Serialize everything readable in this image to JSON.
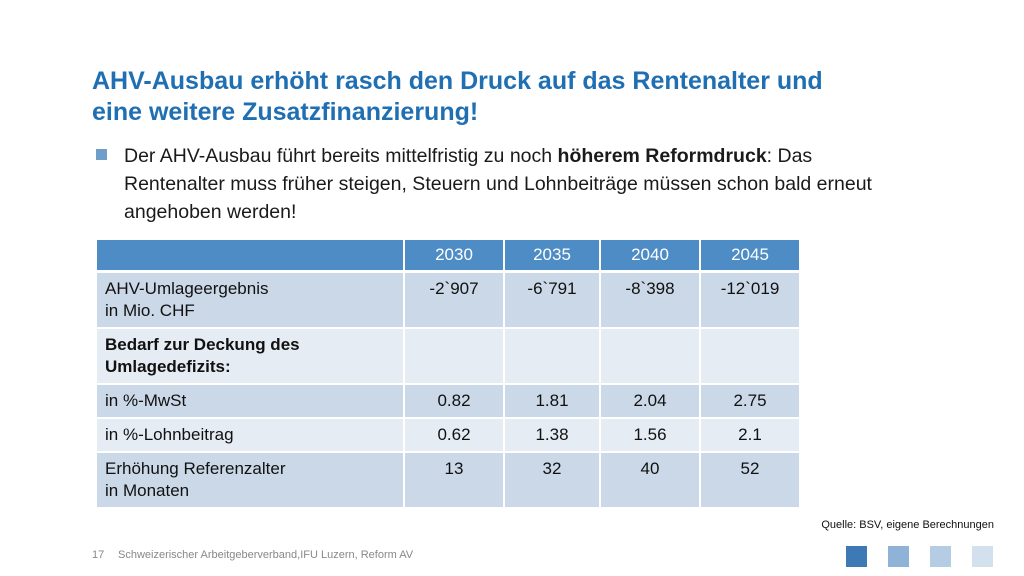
{
  "slide": {
    "title_line1": "AHV-Ausbau erhöht rasch den Druck auf das Rentenalter und",
    "title_line2": "eine weitere Zusatzfinanzierung!",
    "bullet": {
      "before": "Der AHV-Ausbau führt bereits mittelfristig zu noch ",
      "bold": "höherem Reformdruck",
      "after": ": Das Rentenalter muss früher steigen, Steuern und Lohnbeiträge müssen schon bald erneut angehoben werden!"
    }
  },
  "table": {
    "header": [
      "",
      "2030",
      "2035",
      "2040",
      "2045"
    ],
    "rows": [
      {
        "label1": "AHV-Umlageergebnis",
        "label2": "in Mio. CHF",
        "values": [
          "-2`907",
          "-6`791",
          "-8`398",
          "-12`019"
        ]
      },
      {
        "label1": "Bedarf zur Deckung des",
        "label2": "Umlagedefizits:",
        "values": [
          "",
          "",
          "",
          ""
        ]
      },
      {
        "label1": "in %-MwSt",
        "label2": "",
        "values": [
          "0.82",
          "1.81",
          "2.04",
          "2.75"
        ]
      },
      {
        "label1": "in %-Lohnbeitrag",
        "label2": "",
        "values": [
          "0.62",
          "1.38",
          "1.56",
          "2.1"
        ]
      },
      {
        "label1": "Erhöhung Referenzalter",
        "label2": "in Monaten",
        "values": [
          "13",
          "32",
          "40",
          "52"
        ]
      }
    ]
  },
  "source": "Quelle: BSV, eigene Berechnungen",
  "footer": {
    "page_number": "17",
    "text": "Schweizerischer Arbeitgeberverband,IFU Luzern, Reform AV"
  },
  "colors": {
    "title": "#1f6fb2",
    "table_header": "#4d8cc4",
    "row_dark": "#cbd8e7",
    "row_light": "#e6ecf3",
    "squares": [
      "#3d7ab5",
      "#8fb3d6",
      "#b4cce4",
      "#d3e1ef"
    ]
  }
}
